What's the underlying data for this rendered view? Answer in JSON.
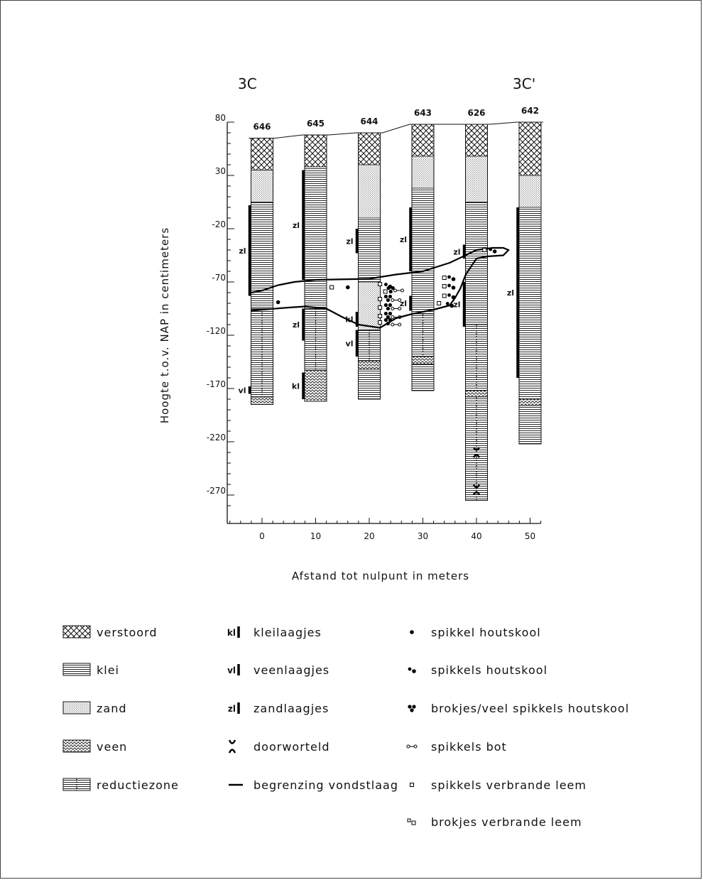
{
  "section": {
    "start_label": "3C",
    "end_label": "3C'"
  },
  "y_axis": {
    "label": "Hoogte t.o.v. NAP in centimeters",
    "ticks": [
      80,
      30,
      -20,
      -70,
      -120,
      -170,
      -220,
      -270
    ],
    "min": -285,
    "max": 80
  },
  "x_axis": {
    "label": "Afstand tot nulpunt in meters",
    "ticks": [
      0,
      10,
      20,
      30,
      40,
      50
    ],
    "min": -6,
    "max": 52
  },
  "boreholes": [
    {
      "id": "646",
      "x": 0,
      "top": 65,
      "bottom": -185,
      "layers": [
        {
          "type": "verstoord",
          "top": 65,
          "bottom": 35
        },
        {
          "type": "zand",
          "top": 35,
          "bottom": 5
        },
        {
          "type": "klei",
          "top": 5,
          "bottom": -95
        },
        {
          "type": "reductiezone",
          "top": -95,
          "bottom": -178
        },
        {
          "type": "veen",
          "top": -178,
          "bottom": -185
        }
      ],
      "marks": [
        {
          "label": "zl",
          "top": 2,
          "bottom": -83
        },
        {
          "label": "vl",
          "top": -168,
          "bottom": -175
        }
      ]
    },
    {
      "id": "645",
      "x": 10,
      "top": 68,
      "bottom": -182,
      "layers": [
        {
          "type": "verstoord",
          "top": 68,
          "bottom": 38
        },
        {
          "type": "klei",
          "top": 38,
          "bottom": -95
        },
        {
          "type": "reductiezone",
          "top": -95,
          "bottom": -153
        },
        {
          "type": "veen",
          "top": -153,
          "bottom": -182
        }
      ],
      "marks": [
        {
          "label": "zl",
          "top": 35,
          "bottom": -68
        },
        {
          "label": "zl",
          "top": -95,
          "bottom": -125
        },
        {
          "label": "kl",
          "top": -155,
          "bottom": -180
        }
      ]
    },
    {
      "id": "644",
      "x": 20,
      "top": 70,
      "bottom": -180,
      "layers": [
        {
          "type": "verstoord",
          "top": 70,
          "bottom": 40
        },
        {
          "type": "zand",
          "top": 40,
          "bottom": -10
        },
        {
          "type": "klei",
          "top": -10,
          "bottom": -70
        },
        {
          "type": "zand",
          "top": -70,
          "bottom": -115
        },
        {
          "type": "reductiezone",
          "top": -115,
          "bottom": -144
        },
        {
          "type": "veen",
          "top": -144,
          "bottom": -152
        },
        {
          "type": "klei",
          "top": -152,
          "bottom": -180
        }
      ],
      "marks": [
        {
          "label": "zl",
          "top": -20,
          "bottom": -43
        },
        {
          "label": "kl",
          "top": -98,
          "bottom": -112
        },
        {
          "label": "vl",
          "top": -115,
          "bottom": -140
        }
      ]
    },
    {
      "id": "643",
      "x": 30,
      "top": 78,
      "bottom": -172,
      "layers": [
        {
          "type": "verstoord",
          "top": 78,
          "bottom": 48
        },
        {
          "type": "zand",
          "top": 48,
          "bottom": 18
        },
        {
          "type": "klei",
          "top": 18,
          "bottom": -100
        },
        {
          "type": "reductiezone",
          "top": -100,
          "bottom": -140
        },
        {
          "type": "veen",
          "top": -140,
          "bottom": -147
        },
        {
          "type": "klei",
          "top": -147,
          "bottom": -172
        }
      ],
      "marks": [
        {
          "label": "zl",
          "top": 0,
          "bottom": -60
        },
        {
          "label": "zl",
          "top": -83,
          "bottom": -97
        }
      ]
    },
    {
      "id": "626",
      "x": 40,
      "top": 78,
      "bottom": -275,
      "layers": [
        {
          "type": "verstoord",
          "top": 78,
          "bottom": 48
        },
        {
          "type": "zand",
          "top": 48,
          "bottom": 5
        },
        {
          "type": "klei",
          "top": 5,
          "bottom": -110
        },
        {
          "type": "reductiezone",
          "top": -110,
          "bottom": -172
        },
        {
          "type": "veen",
          "top": -172,
          "bottom": -178
        },
        {
          "type": "reductiezone",
          "top": -178,
          "bottom": -275
        }
      ],
      "marks": [
        {
          "label": "zl",
          "top": -35,
          "bottom": -48
        },
        {
          "label": "zl",
          "top": -70,
          "bottom": -112
        }
      ],
      "roots": [
        -230,
        -265
      ]
    },
    {
      "id": "642",
      "x": 50,
      "top": 80,
      "bottom": -222,
      "layers": [
        {
          "type": "verstoord",
          "top": 80,
          "bottom": 30
        },
        {
          "type": "zand",
          "top": 30,
          "bottom": 0
        },
        {
          "type": "klei",
          "top": 0,
          "bottom": -180
        },
        {
          "type": "veen",
          "top": -180,
          "bottom": -186
        },
        {
          "type": "klei",
          "top": -186,
          "bottom": -222
        }
      ],
      "marks": [
        {
          "label": "zl",
          "top": 0,
          "bottom": -160
        }
      ]
    }
  ],
  "vondstlaag": {
    "upper": [
      [
        -2,
        -80
      ],
      [
        0,
        -78
      ],
      [
        3,
        -73
      ],
      [
        6,
        -70
      ],
      [
        10,
        -68
      ],
      [
        20,
        -67
      ],
      [
        25,
        -63
      ],
      [
        30,
        -60
      ],
      [
        35,
        -52
      ],
      [
        40,
        -40
      ],
      [
        43,
        -38
      ],
      [
        45,
        -38
      ],
      [
        46,
        -40
      ],
      [
        45,
        -45
      ],
      [
        42,
        -46
      ],
      [
        40,
        -48
      ]
    ],
    "lower": [
      [
        -2,
        -97
      ],
      [
        0,
        -96
      ],
      [
        5,
        -94
      ],
      [
        8,
        -93
      ],
      [
        12,
        -95
      ],
      [
        15,
        -103
      ],
      [
        18,
        -110
      ],
      [
        22,
        -113
      ],
      [
        25,
        -104
      ],
      [
        28,
        -100
      ],
      [
        32,
        -96
      ],
      [
        35,
        -92
      ],
      [
        36,
        -85
      ],
      [
        37,
        -76
      ],
      [
        38,
        -63
      ],
      [
        40,
        -48
      ]
    ]
  },
  "finds": [
    {
      "sym": "dot",
      "x": 3,
      "y": -89
    },
    {
      "sym": "square",
      "x": 13,
      "y": -75
    },
    {
      "sym": "dot",
      "x": 16,
      "y": -75
    },
    {
      "sym": "square",
      "x": 22,
      "y": -72
    },
    {
      "sym": "dots",
      "x": 23.5,
      "y": -73
    },
    {
      "sym": "square",
      "x": 23,
      "y": -79
    },
    {
      "sym": "cluster",
      "x": 24,
      "y": -77
    },
    {
      "sym": "bone",
      "x": 25.5,
      "y": -78
    },
    {
      "sym": "square",
      "x": 22,
      "y": -86
    },
    {
      "sym": "cluster",
      "x": 23.5,
      "y": -85
    },
    {
      "sym": "bone",
      "x": 25,
      "y": -87
    },
    {
      "sym": "square",
      "x": 22,
      "y": -94
    },
    {
      "sym": "cluster",
      "x": 23.5,
      "y": -93
    },
    {
      "sym": "bone",
      "x": 25,
      "y": -95
    },
    {
      "sym": "square",
      "x": 22,
      "y": -102
    },
    {
      "sym": "cluster",
      "x": 23.5,
      "y": -101
    },
    {
      "sym": "bone",
      "x": 25,
      "y": -103
    },
    {
      "sym": "square",
      "x": 22,
      "y": -108
    },
    {
      "sym": "cluster",
      "x": 23.5,
      "y": -107
    },
    {
      "sym": "bone",
      "x": 25,
      "y": -110
    },
    {
      "sym": "square",
      "x": 34,
      "y": -66
    },
    {
      "sym": "dots",
      "x": 35.3,
      "y": -66
    },
    {
      "sym": "square",
      "x": 34,
      "y": -74
    },
    {
      "sym": "dots",
      "x": 35.3,
      "y": -74
    },
    {
      "sym": "square",
      "x": 34,
      "y": -83
    },
    {
      "sym": "dots",
      "x": 35.3,
      "y": -83
    },
    {
      "sym": "square",
      "x": 33,
      "y": -90
    },
    {
      "sym": "dots",
      "x": 35,
      "y": -91
    },
    {
      "sym": "square",
      "x": 41.5,
      "y": -40
    },
    {
      "sym": "dots",
      "x": 43,
      "y": -40
    }
  ],
  "legend": {
    "col1": [
      {
        "key": "verstoord",
        "label": "verstoord"
      },
      {
        "key": "klei",
        "label": "klei"
      },
      {
        "key": "zand",
        "label": "zand"
      },
      {
        "key": "veen",
        "label": "veen"
      },
      {
        "key": "reductiezone",
        "label": "reductiezone"
      }
    ],
    "col2": [
      {
        "key": "kl",
        "abbr": "kl",
        "label": "kleilaagjes"
      },
      {
        "key": "vl",
        "abbr": "vl",
        "label": "veenlaagjes"
      },
      {
        "key": "zl",
        "abbr": "zl",
        "label": "zandlaagjes"
      },
      {
        "key": "doorworteld",
        "abbr": "",
        "label": "doorworteld"
      },
      {
        "key": "begrenzing",
        "abbr": "",
        "label": "begrenzing vondstlaag"
      }
    ],
    "col3": [
      {
        "key": "dot",
        "label": "spikkel houtskool"
      },
      {
        "key": "dots",
        "label": "spikkels houtskool"
      },
      {
        "key": "cluster",
        "label": "brokjes/veel spikkels houtskool"
      },
      {
        "key": "bone",
        "label": "spikkels bot"
      },
      {
        "key": "square",
        "label": "spikkels verbrande leem"
      },
      {
        "key": "squares",
        "label": "brokjes verbrande leem"
      }
    ]
  }
}
